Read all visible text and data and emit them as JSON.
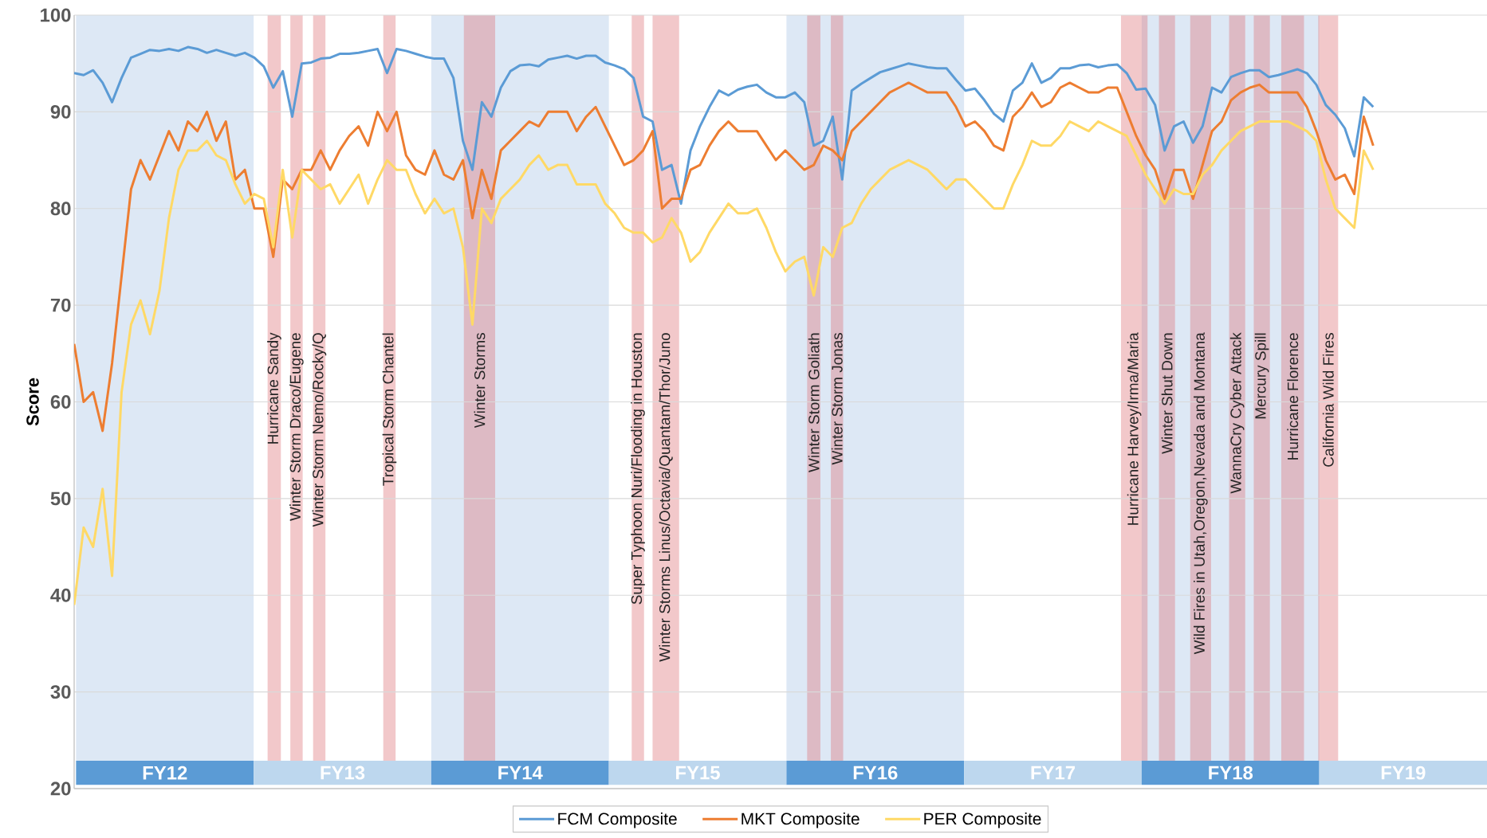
{
  "chart_data": {
    "type": "line",
    "ylabel": "Score",
    "ylim": [
      20,
      100
    ],
    "yticks": [
      {
        "value": 20,
        "label": "20"
      },
      {
        "value": 30,
        "label": "30"
      },
      {
        "value": 40,
        "label": "40"
      },
      {
        "value": 50,
        "label": "50"
      },
      {
        "value": 60,
        "label": "60"
      },
      {
        "value": 70,
        "label": "70"
      },
      {
        "value": 80,
        "label": "80"
      },
      {
        "value": 90,
        "label": "90"
      },
      {
        "value": 100,
        "label": "100"
      }
    ],
    "grid": "y",
    "legend": "bottom",
    "categories": [
      null,
      null,
      null,
      null,
      null,
      null,
      null,
      null,
      null,
      null,
      null,
      null,
      null,
      null,
      null,
      null,
      null,
      null,
      null,
      null,
      null,
      null,
      null,
      null,
      null,
      null,
      null,
      null,
      null,
      null,
      null,
      null,
      null,
      null,
      null,
      null,
      null,
      null,
      null,
      null,
      null,
      null,
      null,
      null,
      null,
      null,
      null,
      null,
      null,
      null,
      null,
      null,
      null,
      null,
      null,
      null,
      null,
      null,
      null,
      null,
      null,
      null,
      null,
      null,
      null,
      null,
      null,
      null,
      null,
      null,
      null,
      null,
      null,
      null,
      null,
      null,
      null,
      null,
      null,
      null,
      null,
      null,
      null,
      null,
      null,
      null,
      null,
      null,
      null,
      null,
      null,
      null,
      null,
      null,
      null,
      null,
      null,
      null,
      null,
      null,
      null,
      null,
      null,
      null,
      null,
      null,
      null,
      null,
      null,
      null,
      null,
      null,
      null,
      null,
      null,
      null,
      null,
      null,
      null,
      null,
      null,
      null,
      null,
      null,
      null,
      null,
      null,
      null,
      null,
      null,
      null,
      null,
      null,
      null,
      null,
      null,
      null,
      null
    ],
    "series": [
      {
        "name": "FCM Composite",
        "color": "#5b9bd5",
        "values": [
          94,
          93.8,
          94.3,
          93,
          91,
          93.5,
          95.6,
          96,
          96.4,
          96.3,
          96.5,
          96.3,
          96.7,
          96.5,
          96.1,
          96.4,
          96.1,
          95.8,
          96.1,
          95.6,
          94.7,
          92.5,
          94.2,
          89.5,
          95,
          95.1,
          95.5,
          95.6,
          96,
          96,
          96.1,
          96.3,
          96.5,
          94,
          96.5,
          96.3,
          96,
          95.7,
          95.5,
          95.5,
          93.5,
          87,
          84,
          91,
          89.5,
          92.5,
          94.2,
          94.8,
          94.9,
          94.7,
          95.4,
          95.6,
          95.8,
          95.5,
          95.8,
          95.8,
          95.1,
          94.8,
          94.4,
          93.5,
          89.5,
          89,
          84,
          84.5,
          80.5,
          86,
          88.5,
          90.5,
          92.2,
          91.7,
          92.3,
          92.6,
          92.8,
          92,
          91.5,
          91.5,
          92,
          91,
          86.5,
          87,
          89.5,
          83,
          92.2,
          92.9,
          93.5,
          94.1,
          94.4,
          94.7,
          95,
          94.8,
          94.6,
          94.5,
          94.5,
          93.3,
          92.2,
          92.4,
          91.2,
          89.8,
          89,
          92.2,
          93,
          95,
          93,
          93.5,
          94.5,
          94.5,
          94.8,
          94.9,
          94.6,
          94.8,
          94.9,
          94,
          92.3,
          92.4,
          90.7,
          86,
          88.5,
          89,
          86.8,
          88.5,
          92.5,
          92,
          93.6,
          94,
          94.3,
          94.3,
          93.6,
          93.8,
          94.1,
          94.4,
          94,
          92.8,
          90.7,
          89.7,
          88.3,
          85.4,
          91.5,
          90.5
        ]
      },
      {
        "name": "MKT Composite",
        "color": "#ed7d31",
        "values": [
          66,
          60,
          61,
          57,
          64,
          73,
          82,
          85,
          83,
          85.5,
          88,
          86,
          89,
          88,
          90,
          87,
          89,
          83,
          84,
          80,
          80,
          75,
          83,
          82,
          84,
          84,
          86,
          84,
          86,
          87.5,
          88.5,
          86.5,
          90,
          88,
          90,
          85.5,
          84,
          83.5,
          86,
          83.5,
          83,
          85,
          79,
          84,
          81,
          86,
          87,
          88,
          89,
          88.5,
          90,
          90,
          90,
          88,
          89.5,
          90.5,
          88.5,
          86.5,
          84.5,
          85,
          86,
          88,
          80,
          81,
          81,
          84,
          84.5,
          86.5,
          88,
          89,
          88,
          88,
          88,
          86.5,
          85,
          86,
          85,
          84,
          84.5,
          86.5,
          86,
          85,
          88,
          89,
          90,
          91,
          92,
          92.5,
          93,
          92.5,
          92,
          92,
          92,
          90.5,
          88.5,
          89,
          88,
          86.5,
          86,
          89.5,
          90.5,
          92,
          90.5,
          91,
          92.5,
          93,
          92.5,
          92,
          92,
          92.5,
          92.5,
          90,
          87.5,
          85.5,
          84,
          81,
          84,
          84,
          81,
          84.5,
          88,
          89,
          91.2,
          92,
          92.5,
          92.8,
          92,
          92,
          92,
          92,
          90.5,
          88,
          85,
          83,
          83.5,
          81.5,
          89.5,
          86.5
        ]
      },
      {
        "name": "PER Composite",
        "color": "#ffd966",
        "values": [
          39,
          47,
          45,
          51,
          42,
          61,
          68,
          70.5,
          67,
          71.5,
          79,
          84,
          86,
          86,
          87,
          85.5,
          85,
          82.5,
          80.5,
          81.5,
          81,
          76,
          84,
          77,
          84,
          83,
          82,
          82.5,
          80.5,
          82,
          83.5,
          80.5,
          83,
          85,
          84,
          84,
          81.5,
          79.5,
          81,
          79.5,
          80,
          76,
          68,
          80,
          78.5,
          81,
          82,
          83,
          84.5,
          85.5,
          84,
          84.5,
          84.5,
          82.5,
          82.5,
          82.5,
          80.5,
          79.5,
          78,
          77.5,
          77.5,
          76.5,
          77,
          79,
          77.5,
          74.5,
          75.5,
          77.5,
          79,
          80.5,
          79.5,
          79.5,
          80,
          78,
          75.5,
          73.5,
          74.5,
          75,
          71,
          76,
          75,
          78,
          78.5,
          80.5,
          82,
          83,
          84,
          84.5,
          85,
          84.5,
          84,
          83,
          82,
          83,
          83,
          82,
          81,
          80,
          80,
          82.5,
          84.5,
          87,
          86.5,
          86.5,
          87.5,
          89,
          88.5,
          88,
          89,
          88.5,
          88,
          87.5,
          85.5,
          83.5,
          82,
          80.5,
          82,
          81.5,
          81.5,
          83.5,
          84.5,
          86,
          87,
          88,
          88.5,
          89,
          89,
          89,
          89,
          88.5,
          88,
          87,
          83,
          80,
          79,
          78,
          86,
          84
        ]
      }
    ],
    "annotations": [
      "FY12",
      "FY13",
      "FY14",
      "FY15",
      "FY16",
      "FY17",
      "FY18",
      "FY19",
      "Hurricane Sandy",
      "Winter Storm Draco/Eugene",
      "Winter Storm Nemo/Rocky/Q",
      "Tropical Storm Chantel",
      "Winter Storms",
      "Super Typhoon Nuri/Flooding in Houston",
      "Winter Storms Linus/Octavia/Quantam/Thor/Juno",
      "Winter Storm Goliath",
      "Winter Storm Jonas",
      "Hurricane Harvey/Irma/Maria",
      "Winter Shut Down",
      "Wild Fires in Utah,Oregon,Nevada and Montana",
      "WannaCry Cyber Attack",
      "Mercury Spill",
      "Hurricane Florence",
      "California Wild Fires"
    ]
  }
}
